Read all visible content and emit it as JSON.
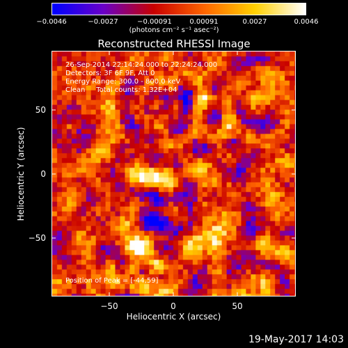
{
  "colorbar": {
    "ticks": [
      "−0.0046",
      "−0.0027",
      "−0.00091",
      "0.00091",
      "0.0027",
      "0.0046"
    ],
    "units": "(photons cm⁻² s⁻¹ asec⁻²)",
    "range": [
      -0.0046,
      0.0046
    ],
    "colors": [
      "#0000ff",
      "#6a00c8",
      "#c80000",
      "#ff6600",
      "#ffd000",
      "#ffffff"
    ]
  },
  "title": "Reconstructed RHESSI Image",
  "annotations": {
    "time": "26-Sep-2014 22:14:24.000 to 22:24:24.000",
    "detectors": "Detectors: 3F 6F 9F, Att 0",
    "energy": "Energy Range: 300.0 - 800.0 keV",
    "clean": "Clean     Total counts: 1.32E+04",
    "peak": "Position of Peak = [-44,59]"
  },
  "axes": {
    "xlabel": "Heliocentric X (arcsec)",
    "ylabel": "Heliocentric Y (arcsec)",
    "xticks": [
      "−50",
      "0",
      "50"
    ],
    "yticks": [
      "50",
      "0",
      "−50"
    ]
  },
  "footer": "19-May-2017 14:03",
  "chart_data": {
    "type": "heatmap",
    "title": "Reconstructed RHESSI Image",
    "xlabel": "Heliocentric X (arcsec)",
    "ylabel": "Heliocentric Y (arcsec)",
    "xlim": [
      -95,
      95
    ],
    "ylim": [
      -95,
      95
    ],
    "zlim": [
      -0.0046,
      0.0046
    ],
    "peak": [
      -44,
      59
    ]
  }
}
